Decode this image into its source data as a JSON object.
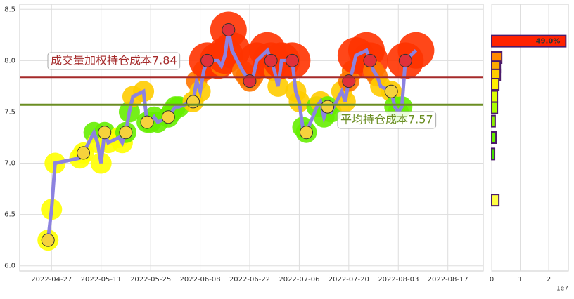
{
  "chart_data": [
    {
      "type": "line",
      "x": [
        "2022-04-26",
        "2022-04-27",
        "2022-04-28",
        "2022-05-05",
        "2022-05-06",
        "2022-05-09",
        "2022-05-10",
        "2022-05-11",
        "2022-05-12",
        "2022-05-13",
        "2022-05-16",
        "2022-05-17",
        "2022-05-18",
        "2022-05-19",
        "2022-05-20",
        "2022-05-23",
        "2022-05-24",
        "2022-05-25",
        "2022-05-26",
        "2022-05-27",
        "2022-05-30",
        "2022-05-31",
        "2022-06-01",
        "2022-06-02",
        "2022-06-06",
        "2022-06-07",
        "2022-06-08",
        "2022-06-09",
        "2022-06-10",
        "2022-06-13",
        "2022-06-14",
        "2022-06-15",
        "2022-06-16",
        "2022-06-17",
        "2022-06-20",
        "2022-06-21",
        "2022-06-22",
        "2022-06-23",
        "2022-06-24",
        "2022-06-27",
        "2022-06-28",
        "2022-06-29",
        "2022-06-30",
        "2022-07-01",
        "2022-07-04",
        "2022-07-05",
        "2022-07-06",
        "2022-07-07",
        "2022-07-08",
        "2022-07-11",
        "2022-07-12",
        "2022-07-13",
        "2022-07-14",
        "2022-07-15",
        "2022-07-18",
        "2022-07-19",
        "2022-07-20",
        "2022-07-21",
        "2022-07-22",
        "2022-07-25",
        "2022-07-26",
        "2022-07-27",
        "2022-07-28",
        "2022-07-29",
        "2022-08-01",
        "2022-08-02",
        "2022-08-03",
        "2022-08-04",
        "2022-08-05",
        "2022-08-08"
      ],
      "values": [
        6.25,
        6.55,
        7.0,
        7.05,
        7.1,
        7.3,
        7.2,
        7.0,
        7.3,
        7.2,
        7.25,
        7.2,
        7.3,
        7.5,
        7.65,
        7.7,
        7.4,
        7.4,
        7.45,
        7.4,
        7.45,
        7.5,
        7.55,
        7.55,
        7.6,
        7.8,
        7.7,
        7.9,
        8.0,
        8.0,
        7.95,
        8.05,
        8.3,
        8.1,
        7.9,
        7.85,
        7.8,
        7.85,
        8.0,
        8.1,
        8.0,
        7.9,
        7.75,
        8.0,
        8.0,
        7.7,
        7.6,
        7.35,
        7.3,
        7.55,
        7.6,
        7.45,
        7.55,
        7.5,
        7.7,
        7.6,
        7.8,
        7.9,
        8.05,
        8.1,
        8.0,
        7.9,
        7.85,
        7.75,
        7.7,
        7.55,
        7.5,
        7.55,
        8.0,
        8.1
      ],
      "color": "#8c82e0",
      "xlim": [
        "2022-04-18",
        "2022-08-27"
      ],
      "xticks": [
        "2022-04-27",
        "2022-05-11",
        "2022-05-25",
        "2022-06-08",
        "2022-06-22",
        "2022-07-06",
        "2022-07-20",
        "2022-08-03",
        "2022-08-17"
      ],
      "ylim": [
        5.95,
        8.55
      ],
      "yticks": [
        {
          "value": 6.0,
          "label": "6.0"
        },
        {
          "value": 6.5,
          "label": "6.5"
        },
        {
          "value": 7.0,
          "label": "7.0"
        },
        {
          "value": 7.5,
          "label": "7.5"
        },
        {
          "value": 8.0,
          "label": "8.0"
        },
        {
          "value": 8.5,
          "label": "8.5"
        }
      ],
      "grid": true,
      "cost_lines": [
        {
          "label": "成交量加权持仓成本7.84",
          "value": 7.84,
          "color": "#a52a2a"
        },
        {
          "label": "平均持仓成本7.57",
          "value": 7.57,
          "color": "#6b8e23"
        }
      ]
    },
    {
      "type": "barh",
      "y": [
        8.19,
        8.03,
        7.94,
        7.86,
        7.77,
        7.65,
        7.54,
        7.41,
        7.25,
        7.09,
        6.64
      ],
      "values": [
        2.6,
        0.35,
        0.3,
        0.3,
        0.25,
        0.2,
        0.2,
        0.12,
        0.15,
        0.1,
        0.25
      ],
      "value_labels": [
        "49.0%",
        null,
        null,
        null,
        null,
        null,
        null,
        null,
        null,
        null,
        null
      ],
      "colors": [
        "#ff2200",
        "#ff8800",
        "#ffaa00",
        "#ffcc00",
        "#ffee00",
        "#ddff00",
        "#aaff00",
        "#88ee00",
        "#66ee00",
        "#44dd00",
        "#ffff44"
      ],
      "xlim": [
        0,
        2.69
      ],
      "xticks": [
        0,
        1,
        2
      ],
      "x_offset_label": "1e7",
      "ylim": [
        5.95,
        8.55
      ],
      "grid": true
    }
  ]
}
